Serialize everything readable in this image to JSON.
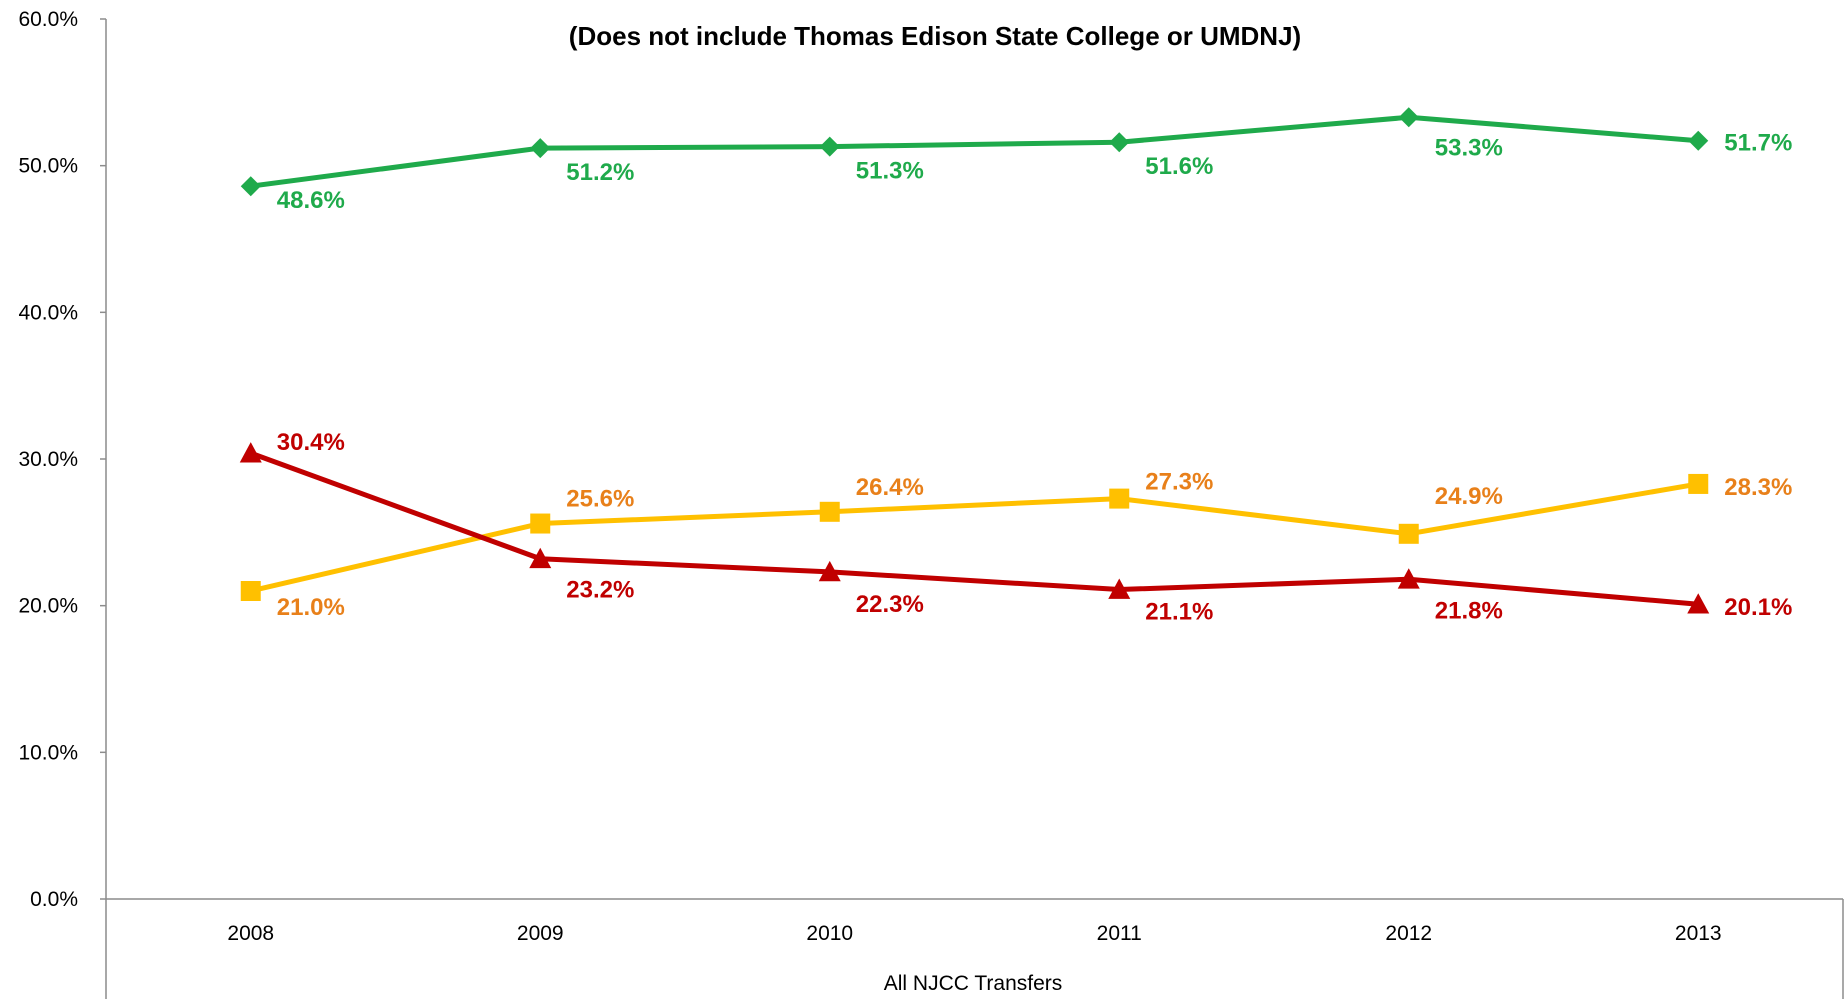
{
  "chart_data": {
    "type": "line",
    "title": "",
    "subtitle": "(Does not include Thomas Edison State College or UMDNJ)",
    "xlabel": "All NJCC Transfers",
    "ylabel": "",
    "categories": [
      "2008",
      "2009",
      "2010",
      "2011",
      "2012",
      "2013"
    ],
    "ylim": [
      0,
      60
    ],
    "yticks": [
      0,
      10,
      20,
      30,
      40,
      50,
      60
    ],
    "ytick_labels": [
      "0.0%",
      "10.0%",
      "20.0%",
      "30.0%",
      "40.0%",
      "50.0%",
      "60.0%"
    ],
    "grid": false,
    "legend": "none",
    "series": [
      {
        "marker": "diamond",
        "color": "#1FAA4B",
        "label_color": "#1FAA4B",
        "values": [
          48.6,
          51.2,
          51.3,
          51.6,
          53.3,
          51.7
        ],
        "labels": [
          "48.6%",
          "51.2%",
          "51.3%",
          "51.6%",
          "53.3%",
          "51.7%"
        ]
      },
      {
        "marker": "square",
        "color": "#FFC000",
        "label_color": "#E8801A",
        "values": [
          21.0,
          25.6,
          26.4,
          27.3,
          24.9,
          28.3
        ],
        "labels": [
          "21.0%",
          "25.6%",
          "26.4%",
          "27.3%",
          "24.9%",
          "28.3%"
        ]
      },
      {
        "marker": "triangle",
        "color": "#C00000",
        "label_color": "#C00000",
        "values": [
          30.4,
          23.2,
          22.3,
          21.1,
          21.8,
          20.1
        ],
        "labels": [
          "30.4%",
          "23.2%",
          "22.3%",
          "21.1%",
          "21.8%",
          "20.1%"
        ]
      }
    ]
  }
}
